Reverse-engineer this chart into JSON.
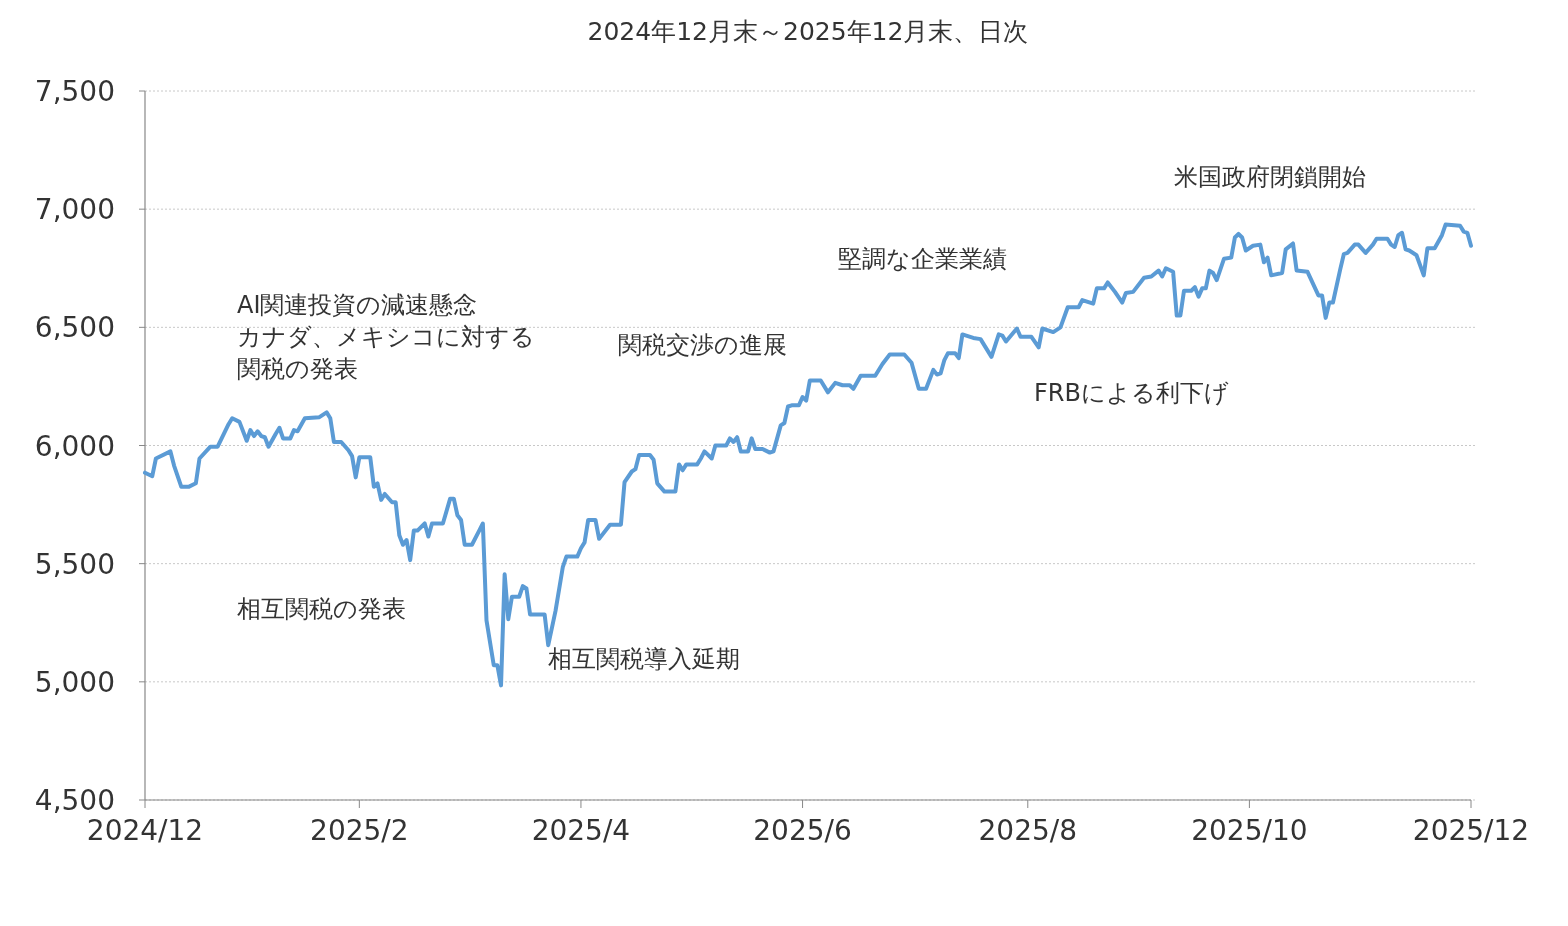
{
  "chart_data": {
    "type": "line",
    "title": "2024年12月末～2025年12月末、日次",
    "annotations": [
      "AI関連投資の減速懸念",
      "カナダ、メキシコに対する関税の発表",
      "相互関税の発表",
      "相互関税導入延期",
      "関税交渉の進展",
      "堅調な企業業績",
      "FRBによる利下げ",
      "米国政府閉鎖開始"
    ],
    "x": [
      "2024-12-31",
      "2025-01-02",
      "2025-01-03",
      "2025-01-07",
      "2025-01-08",
      "2025-01-10",
      "2025-01-12",
      "2025-01-14",
      "2025-01-15",
      "2025-01-18",
      "2025-01-20",
      "2025-01-23",
      "2025-01-24",
      "2025-01-26",
      "2025-01-28",
      "2025-01-29",
      "2025-01-30",
      "2025-01-31",
      "2025-02-01",
      "2025-02-02",
      "2025-02-03",
      "2025-02-05",
      "2025-02-06",
      "2025-02-07",
      "2025-02-09",
      "2025-02-10",
      "2025-02-11",
      "2025-02-13",
      "2025-02-17",
      "2025-02-19",
      "2025-02-20",
      "2025-02-21",
      "2025-02-23",
      "2025-02-25",
      "2025-02-26",
      "2025-02-27",
      "2025-02-28",
      "2025-03-03",
      "2025-03-04",
      "2025-03-05",
      "2025-03-06",
      "2025-03-07",
      "2025-03-09",
      "2025-03-10",
      "2025-03-11",
      "2025-03-12",
      "2025-03-13",
      "2025-03-14",
      "2025-03-15",
      "2025-03-16",
      "2025-03-18",
      "2025-03-19",
      "2025-03-20",
      "2025-03-23",
      "2025-03-25",
      "2025-03-26",
      "2025-03-27",
      "2025-03-28",
      "2025-03-29",
      "2025-03-31",
      "2025-04-02",
      "2025-04-03",
      "2025-04-04",
      "2025-04-06",
      "2025-04-07",
      "2025-04-08",
      "2025-04-09",
      "2025-04-10",
      "2025-04-11",
      "2025-04-13",
      "2025-04-14",
      "2025-04-15",
      "2025-04-16",
      "2025-04-20",
      "2025-04-21",
      "2025-04-23",
      "2025-04-25",
      "2025-04-26",
      "2025-04-29",
      "2025-04-30",
      "2025-05-01",
      "2025-05-02",
      "2025-05-04",
      "2025-05-05",
      "2025-05-08",
      "2025-05-11",
      "2025-05-12",
      "2025-05-14",
      "2025-05-15",
      "2025-05-16",
      "2025-05-19",
      "2025-05-20",
      "2025-05-21",
      "2025-05-23",
      "2025-05-26",
      "2025-05-27",
      "2025-05-28",
      "2025-05-29",
      "2025-06-01",
      "2025-06-02",
      "2025-06-03",
      "2025-06-05",
      "2025-06-06",
      "2025-06-09",
      "2025-06-10",
      "2025-06-11",
      "2025-06-12",
      "2025-06-13",
      "2025-06-15",
      "2025-06-16",
      "2025-06-17",
      "2025-06-19",
      "2025-06-21",
      "2025-06-22",
      "2025-06-24",
      "2025-06-25",
      "2025-06-26",
      "2025-06-27",
      "2025-06-29",
      "2025-06-30",
      "2025-07-01",
      "2025-07-02",
      "2025-07-05",
      "2025-07-07",
      "2025-07-09",
      "2025-07-11",
      "2025-07-13",
      "2025-07-14",
      "2025-07-16",
      "2025-07-20",
      "2025-07-22",
      "2025-07-24",
      "2025-07-28",
      "2025-07-30",
      "2025-08-01",
      "2025-08-03",
      "2025-08-05",
      "2025-08-06",
      "2025-08-07",
      "2025-08-08",
      "2025-08-09",
      "2025-08-11",
      "2025-08-12",
      "2025-08-13",
      "2025-08-16",
      "2025-08-18",
      "2025-08-21",
      "2025-08-23",
      "2025-08-24",
      "2025-08-25",
      "2025-08-28",
      "2025-08-29",
      "2025-09-01",
      "2025-09-03",
      "2025-09-04",
      "2025-09-07",
      "2025-09-09",
      "2025-09-11",
      "2025-09-14",
      "2025-09-15",
      "2025-09-18",
      "2025-09-19",
      "2025-09-21",
      "2025-09-22",
      "2025-09-24",
      "2025-09-26",
      "2025-09-27",
      "2025-09-29",
      "2025-10-02",
      "2025-10-04",
      "2025-10-06",
      "2025-10-07",
      "2025-10-08",
      "2025-10-10",
      "2025-10-11",
      "2025-10-12",
      "2025-10-13",
      "2025-10-15",
      "2025-10-16",
      "2025-10-17",
      "2025-10-18",
      "2025-10-19",
      "2025-10-20",
      "2025-10-21",
      "2025-10-22",
      "2025-10-24",
      "2025-10-26",
      "2025-10-27",
      "2025-10-28",
      "2025-10-29",
      "2025-10-30",
      "2025-11-01",
      "2025-11-03",
      "2025-11-04",
      "2025-11-05",
      "2025-11-06",
      "2025-11-09",
      "2025-11-10",
      "2025-11-12",
      "2025-11-13",
      "2025-11-16",
      "2025-11-19",
      "2025-11-20",
      "2025-11-21",
      "2025-11-22",
      "2025-11-23",
      "2025-11-25",
      "2025-11-26",
      "2025-11-27",
      "2025-11-29",
      "2025-11-30",
      "2025-12-02",
      "2025-12-04",
      "2025-12-05",
      "2025-12-08",
      "2025-12-09",
      "2025-12-10",
      "2025-12-11",
      "2025-12-12",
      "2025-12-13",
      "2025-12-14",
      "2025-12-16",
      "2025-12-18",
      "2025-12-19",
      "2025-12-21",
      "2025-12-23",
      "2025-12-24",
      "2025-12-28",
      "2025-12-29",
      "2025-12-30",
      "2025-12-31"
    ],
    "series": [
      {
        "color": "#5b9bd5",
        "values": [
          5885,
          5870,
          5945,
          5975,
          5915,
          5825,
          5825,
          5840,
          5945,
          5995,
          5995,
          6090,
          6115,
          6100,
          6020,
          6065,
          6040,
          6060,
          6040,
          6035,
          5995,
          6050,
          6075,
          6030,
          6030,
          6065,
          6060,
          6115,
          6120,
          6140,
          6115,
          6015,
          6015,
          5980,
          5955,
          5865,
          5950,
          5950,
          5825,
          5840,
          5770,
          5795,
          5760,
          5760,
          5620,
          5580,
          5600,
          5515,
          5640,
          5640,
          5670,
          5615,
          5670,
          5670,
          5775,
          5775,
          5705,
          5685,
          5580,
          5580,
          5640,
          5670,
          5260,
          5070,
          5070,
          4985,
          5455,
          5265,
          5360,
          5360,
          5405,
          5395,
          5285,
          5285,
          5155,
          5300,
          5485,
          5530,
          5530,
          5565,
          5590,
          5685,
          5685,
          5605,
          5665,
          5665,
          5845,
          5890,
          5900,
          5960,
          5960,
          5940,
          5840,
          5805,
          5805,
          5920,
          5895,
          5920,
          5920,
          5945,
          5975,
          5945,
          6000,
          6000,
          6030,
          6015,
          6035,
          5975,
          5975,
          6030,
          5985,
          5985,
          5970,
          5975,
          6085,
          6095,
          6165,
          6170,
          6170,
          6205,
          6190,
          6275,
          6275,
          6225,
          6265,
          6255,
          6255,
          6240,
          6295,
          6295,
          6345,
          6385,
          6385,
          6350,
          6240,
          6240,
          6320,
          6300,
          6305,
          6360,
          6390,
          6390,
          6370,
          6470,
          6455,
          6450,
          6375,
          6470,
          6465,
          6440,
          6495,
          6460,
          6460,
          6415,
          6495,
          6480,
          6500,
          6585,
          6585,
          6615,
          6600,
          6665,
          6665,
          6690,
          6650,
          6605,
          6645,
          6650,
          6710,
          6715,
          6740,
          6715,
          6750,
          6735,
          6550,
          6550,
          6655,
          6655,
          6670,
          6630,
          6665,
          6665,
          6740,
          6730,
          6700,
          6790,
          6795,
          6880,
          6895,
          6880,
          6825,
          6845,
          6850,
          6775,
          6795,
          6720,
          6730,
          6830,
          6855,
          6740,
          6735,
          6635,
          6635,
          6540,
          6605,
          6605,
          6745,
          6810,
          6815,
          6850,
          6850,
          6815,
          6850,
          6875,
          6875,
          6850,
          6840,
          6890,
          6900,
          6830,
          6825,
          6805,
          6720,
          6835,
          6835,
          6890,
          6935,
          6930,
          6905,
          6900,
          6845
        ]
      }
    ],
    "xlim": [
      "2024-12-31",
      "2025-12-31"
    ],
    "xticks": [
      {
        "value": "2024-12-31",
        "label": "2024/12"
      },
      {
        "value": "2025-02-28",
        "label": "2025/2"
      },
      {
        "value": "2025-04-30",
        "label": "2025/4"
      },
      {
        "value": "2025-06-30",
        "label": "2025/6"
      },
      {
        "value": "2025-08-31",
        "label": "2025/8"
      },
      {
        "value": "2025-10-31",
        "label": "2025/10"
      },
      {
        "value": "2025-12-31",
        "label": "2025/12"
      }
    ],
    "ylim": [
      4500,
      7500
    ],
    "yticks": [
      {
        "value": 4500,
        "label": "4,500"
      },
      {
        "value": 5000,
        "label": "5,000"
      },
      {
        "value": 5500,
        "label": "5,500"
      },
      {
        "value": 6000,
        "label": "6,000"
      },
      {
        "value": 6500,
        "label": "6,500"
      },
      {
        "value": 7000,
        "label": "7,000"
      },
      {
        "value": 7500,
        "label": "7,500"
      }
    ],
    "grid": "y"
  }
}
